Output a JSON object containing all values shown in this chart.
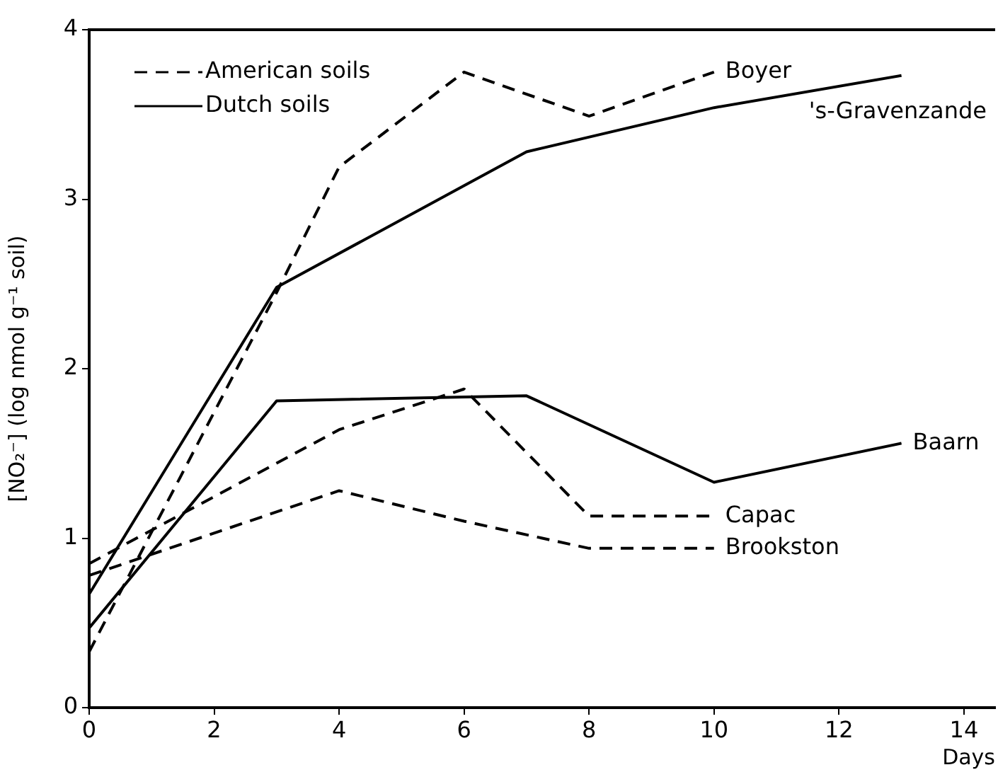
{
  "chart_data": {
    "type": "line",
    "xlabel": "Days",
    "ylabel": "[NO₂⁻] (log nmol g⁻¹ soil)",
    "xlim": [
      0,
      14.5
    ],
    "xticks": [
      0,
      2,
      4,
      6,
      8,
      10,
      12,
      14
    ],
    "ylim": [
      0,
      4
    ],
    "yticks": [
      0,
      1,
      2,
      3,
      4
    ],
    "grid": false,
    "legend": false,
    "marker": "none",
    "annotations": [
      "American soils",
      "Dutch soils"
    ],
    "series": [
      {
        "name": "Boyer",
        "color": "#000000",
        "line_style": "dashed",
        "x": [
          0,
          3,
          4,
          6,
          8,
          10
        ],
        "values": [
          0.33,
          2.45,
          3.19,
          3.75,
          3.49,
          3.75
        ]
      },
      {
        "name": "Capac",
        "color": "#000000",
        "line_style": "dashed",
        "x": [
          0,
          4,
          6,
          8,
          10
        ],
        "values": [
          0.85,
          1.64,
          1.88,
          1.13,
          1.13
        ]
      },
      {
        "name": "Brookston",
        "color": "#000000",
        "line_style": "dashed",
        "x": [
          0,
          4,
          6,
          8,
          10
        ],
        "values": [
          0.78,
          1.28,
          1.1,
          0.94,
          0.94
        ]
      },
      {
        "name": "'s-Gravenzande",
        "color": "#000000",
        "line_style": "solid",
        "x": [
          0,
          3,
          7,
          10,
          13
        ],
        "values": [
          0.67,
          2.48,
          3.28,
          3.54,
          3.73
        ]
      },
      {
        "name": "Baarn",
        "color": "#000000",
        "line_style": "solid",
        "x": [
          0,
          3,
          7,
          10,
          13
        ],
        "values": [
          0.47,
          1.81,
          1.84,
          1.33,
          1.56
        ]
      }
    ]
  }
}
